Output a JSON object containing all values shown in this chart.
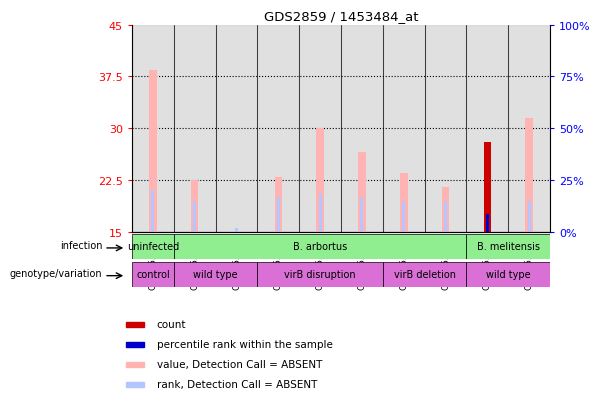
{
  "title": "GDS2859 / 1453484_at",
  "samples": [
    "GSM155205",
    "GSM155248",
    "GSM155249",
    "GSM155251",
    "GSM155252",
    "GSM155253",
    "GSM155254",
    "GSM155255",
    "GSM155256",
    "GSM155257"
  ],
  "ylim_left": [
    15,
    45
  ],
  "ylim_right": [
    0,
    100
  ],
  "yticks_left": [
    15,
    22.5,
    30,
    37.5,
    45
  ],
  "ytick_labels_left": [
    "15",
    "22.5",
    "30",
    "37.5",
    "45"
  ],
  "yticks_right": [
    0,
    25,
    50,
    75,
    100
  ],
  "ytick_labels_right": [
    "0%",
    "25%",
    "50%",
    "75%",
    "100%"
  ],
  "value_bars": [
    38.5,
    22.5,
    0,
    23.0,
    30.0,
    26.5,
    23.5,
    21.5,
    0,
    31.5
  ],
  "rank_bars": [
    21.0,
    19.5,
    15.5,
    20.0,
    20.5,
    20.0,
    19.5,
    19.5,
    0,
    19.5
  ],
  "count_bars": [
    0,
    0,
    0,
    0,
    0,
    0,
    0,
    0,
    28.0,
    0
  ],
  "percentile_bars": [
    0,
    0,
    0,
    0,
    0,
    0,
    0,
    0,
    17.5,
    0
  ],
  "value_color": "#ffb3b3",
  "rank_color": "#b3c6ff",
  "count_color": "#cc0000",
  "percentile_color": "#0000cc",
  "bar_bottom": 15,
  "dotted_lines": [
    22.5,
    30,
    37.5
  ],
  "infection_row": [
    {
      "label": "uninfected",
      "start": 0,
      "end": 1,
      "color": "#90ee90"
    },
    {
      "label": "B. arbortus",
      "start": 1,
      "end": 8,
      "color": "#90ee90"
    },
    {
      "label": "B. melitensis",
      "start": 8,
      "end": 10,
      "color": "#90ee90"
    }
  ],
  "genotype_row": [
    {
      "label": "control",
      "start": 0,
      "end": 1,
      "color": "#da70d6"
    },
    {
      "label": "wild type",
      "start": 1,
      "end": 3,
      "color": "#da70d6"
    },
    {
      "label": "virB disruption",
      "start": 3,
      "end": 6,
      "color": "#da70d6"
    },
    {
      "label": "virB deletion",
      "start": 6,
      "end": 8,
      "color": "#da70d6"
    },
    {
      "label": "wild type",
      "start": 8,
      "end": 10,
      "color": "#da70d6"
    }
  ],
  "legend_items": [
    {
      "label": "count",
      "color": "#cc0000"
    },
    {
      "label": "percentile rank within the sample",
      "color": "#0000cc"
    },
    {
      "label": "value, Detection Call = ABSENT",
      "color": "#ffb3b3"
    },
    {
      "label": "rank, Detection Call = ABSENT",
      "color": "#b3c6ff"
    }
  ]
}
